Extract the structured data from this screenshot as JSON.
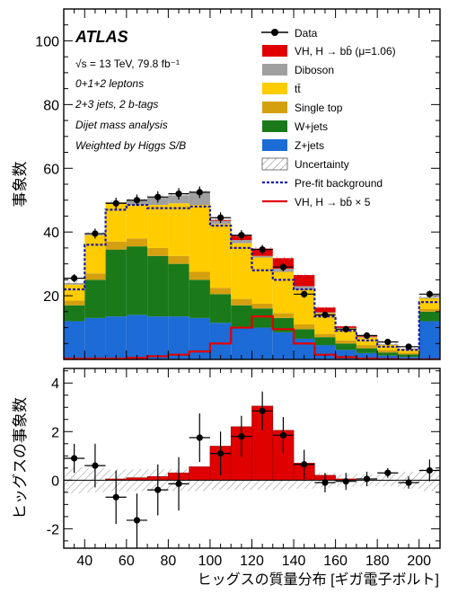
{
  "chart_data": [
    {
      "type": "stacked-histogram",
      "panel": "top",
      "ylabel": "事象数",
      "xlim": [
        30,
        210
      ],
      "ylim": [
        0,
        110
      ],
      "y_ticks": [
        20,
        40,
        60,
        80,
        100
      ],
      "bin_edges": [
        30,
        40,
        50,
        60,
        70,
        80,
        90,
        100,
        110,
        120,
        130,
        140,
        150,
        160,
        170,
        180,
        190,
        200,
        210
      ],
      "experiment": "ATLAS",
      "info_lines": [
        "√s = 13 TeV, 79.8 fb⁻¹",
        "0+1+2 leptons",
        "2+3 jets, 2 b-tags",
        "Dijet mass analysis",
        "Weighted by Higgs S/B"
      ],
      "legend": {
        "data": "Data",
        "vh": "VH, H → bb̄ (μ=1.06)",
        "diboson": "Diboson",
        "ttbar": "tt̄",
        "singletop": "Single top",
        "wjets": "W+jets",
        "zjets": "Z+jets",
        "uncertainty": "Uncertainty",
        "prefit": "Pre-fit background",
        "signal_x5": "VH, H → bb̄ × 5"
      },
      "colors": {
        "zjets": "#1c6bd6",
        "wjets": "#1a7a1a",
        "singletop": "#d4a010",
        "ttbar": "#ffcc00",
        "diboson": "#a0a0a0",
        "vh": "#e00000",
        "prefit": "#1a1aa8",
        "signal_x5": "#e00000"
      },
      "series": [
        {
          "key": "zjets",
          "values": [
            12,
            13,
            13.5,
            14,
            13.5,
            13.5,
            13,
            11.5,
            10,
            10,
            8.5,
            6.5,
            4.5,
            3,
            2,
            1.2,
            0.8,
            12
          ]
        },
        {
          "key": "wjets",
          "values": [
            5,
            12,
            21,
            21.5,
            19,
            16.5,
            12,
            9,
            7,
            6,
            4.5,
            3,
            2.5,
            2,
            1.5,
            1,
            0.8,
            3
          ]
        },
        {
          "key": "singletop",
          "values": [
            1.5,
            2,
            2.5,
            2.5,
            2.5,
            2.5,
            2.5,
            2,
            2,
            1.5,
            1.5,
            1.5,
            1,
            1,
            1,
            0.8,
            0.5,
            0.8
          ]
        },
        {
          "key": "ttbar",
          "values": [
            5,
            12,
            12,
            10.5,
            13.5,
            16.5,
            21,
            20,
            17.5,
            14.5,
            13,
            11,
            6.5,
            3.7,
            2.4,
            1.6,
            1.2,
            3.4
          ]
        },
        {
          "key": "diboson",
          "values": [
            0.5,
            0.5,
            0.4,
            1.5,
            2.5,
            2.5,
            4,
            1,
            1,
            0.5,
            1,
            1,
            0.3,
            0.2,
            0.2,
            0.2,
            0.1,
            0.3
          ]
        },
        {
          "key": "vh",
          "values": [
            0,
            0,
            0,
            0,
            0,
            0,
            0,
            0.3,
            1.3,
            2.3,
            3.3,
            3.5,
            1.5,
            0.5,
            0.2,
            0,
            0,
            0
          ]
        }
      ],
      "prefit_background": [
        22,
        36,
        47,
        48.5,
        47.5,
        47.5,
        48,
        42,
        35,
        28,
        25,
        22,
        13.5,
        9,
        6,
        4,
        3,
        18
      ],
      "signal_x5": [
        0.3,
        0.3,
        0.3,
        0.5,
        1,
        1.5,
        2.5,
        5,
        10,
        13.5,
        9.5,
        5,
        1.5,
        0.7,
        0.3,
        0.1,
        0,
        0
      ],
      "data_x": [
        35,
        45,
        55,
        65,
        75,
        85,
        95,
        105,
        115,
        125,
        135,
        145,
        155,
        165,
        175,
        185,
        195,
        205
      ],
      "data_y": [
        25.5,
        39.5,
        49,
        50,
        51,
        52,
        52.5,
        44.5,
        39,
        34.5,
        29,
        20.5,
        14,
        9.5,
        7.5,
        5.5,
        4,
        20.5
      ]
    },
    {
      "type": "histogram-with-points",
      "panel": "bottom",
      "ylabel": "ヒッグスの事象数",
      "xlabel": "ヒッグスの質量分布 [ギガ電子ボルト]",
      "xlim": [
        30,
        210
      ],
      "ylim": [
        -2.8,
        4.6
      ],
      "x_ticks": [
        40,
        60,
        80,
        100,
        120,
        140,
        160,
        180,
        200
      ],
      "y_ticks": [
        -2,
        0,
        2,
        4
      ],
      "signal": [
        0,
        0,
        0.05,
        0.1,
        0.15,
        0.3,
        0.55,
        1.4,
        2.2,
        3.05,
        2.05,
        0.7,
        0.2,
        0.05,
        0,
        0,
        0,
        0
      ],
      "uncertainty": [
        0.55,
        0.5,
        0.45,
        0.45,
        0.45,
        0.45,
        0.45,
        0.4,
        0.4,
        0.4,
        0.4,
        0.35,
        0.3,
        0.25,
        0.25,
        0.25,
        0.35,
        0.45
      ],
      "points": [
        {
          "x": 35,
          "y": 0.9,
          "err": 0.6
        },
        {
          "x": 45,
          "y": 0.6,
          "err": 0.9
        },
        {
          "x": 55,
          "y": -0.7,
          "err": 1.1
        },
        {
          "x": 65,
          "y": -1.65,
          "err": 1.1
        },
        {
          "x": 75,
          "y": -0.4,
          "err": 1.05
        },
        {
          "x": 85,
          "y": -0.15,
          "err": 1.1
        },
        {
          "x": 95,
          "y": 1.75,
          "err": 1.0
        },
        {
          "x": 105,
          "y": 1.1,
          "err": 0.9
        },
        {
          "x": 115,
          "y": 1.8,
          "err": 0.85
        },
        {
          "x": 125,
          "y": 2.85,
          "err": 0.8
        },
        {
          "x": 135,
          "y": 1.85,
          "err": 0.75
        },
        {
          "x": 145,
          "y": 0.65,
          "err": 0.6
        },
        {
          "x": 155,
          "y": -0.1,
          "err": 0.4
        },
        {
          "x": 165,
          "y": -0.05,
          "err": 0.35
        },
        {
          "x": 175,
          "y": 0.05,
          "err": 0.3
        },
        {
          "x": 185,
          "y": 0.3,
          "err": 0.2
        },
        {
          "x": 195,
          "y": -0.1,
          "err": 0.25
        },
        {
          "x": 205,
          "y": 0.4,
          "err": 0.45
        }
      ]
    }
  ]
}
